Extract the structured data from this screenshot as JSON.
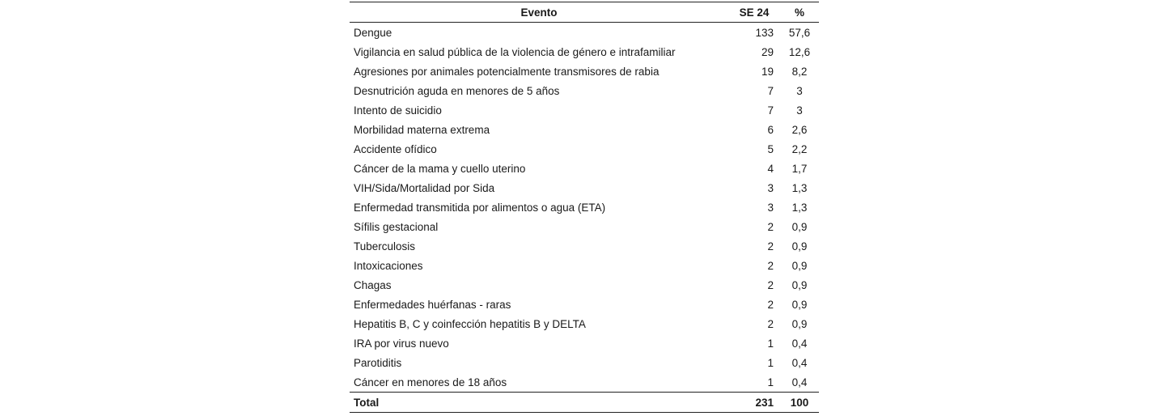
{
  "table": {
    "headers": {
      "evento": "Evento",
      "se": "SE 24",
      "pct": "%"
    },
    "rows": [
      {
        "evento": "Dengue",
        "se": "133",
        "pct": "57,6"
      },
      {
        "evento": "Vigilancia en salud pública de la violencia de género e intrafamiliar",
        "se": "29",
        "pct": "12,6"
      },
      {
        "evento": "Agresiones por animales potencialmente transmisores de rabia",
        "se": "19",
        "pct": "8,2"
      },
      {
        "evento": "Desnutrición aguda en menores de 5 años",
        "se": "7",
        "pct": "3"
      },
      {
        "evento": "Intento de suicidio",
        "se": "7",
        "pct": "3"
      },
      {
        "evento": "Morbilidad materna extrema",
        "se": "6",
        "pct": "2,6"
      },
      {
        "evento": "Accidente ofídico",
        "se": "5",
        "pct": "2,2"
      },
      {
        "evento": "Cáncer de la mama y cuello uterino",
        "se": "4",
        "pct": "1,7"
      },
      {
        "evento": "VIH/Sida/Mortalidad por Sida",
        "se": "3",
        "pct": "1,3"
      },
      {
        "evento": "Enfermedad transmitida por alimentos o agua (ETA)",
        "se": "3",
        "pct": "1,3"
      },
      {
        "evento": "Sífilis gestacional",
        "se": "2",
        "pct": "0,9"
      },
      {
        "evento": "Tuberculosis",
        "se": "2",
        "pct": "0,9"
      },
      {
        "evento": "Intoxicaciones",
        "se": "2",
        "pct": "0,9"
      },
      {
        "evento": "Chagas",
        "se": "2",
        "pct": "0,9"
      },
      {
        "evento": "Enfermedades huérfanas - raras",
        "se": "2",
        "pct": "0,9"
      },
      {
        "evento": "Hepatitis B, C y coinfección hepatitis B y DELTA",
        "se": "2",
        "pct": "0,9"
      },
      {
        "evento": "IRA por virus nuevo",
        "se": "1",
        "pct": "0,4"
      },
      {
        "evento": "Parotiditis",
        "se": "1",
        "pct": "0,4"
      },
      {
        "evento": "Cáncer en menores de 18 años",
        "se": "1",
        "pct": "0,4"
      }
    ],
    "total": {
      "evento": "Total",
      "se": "231",
      "pct": "100"
    }
  }
}
